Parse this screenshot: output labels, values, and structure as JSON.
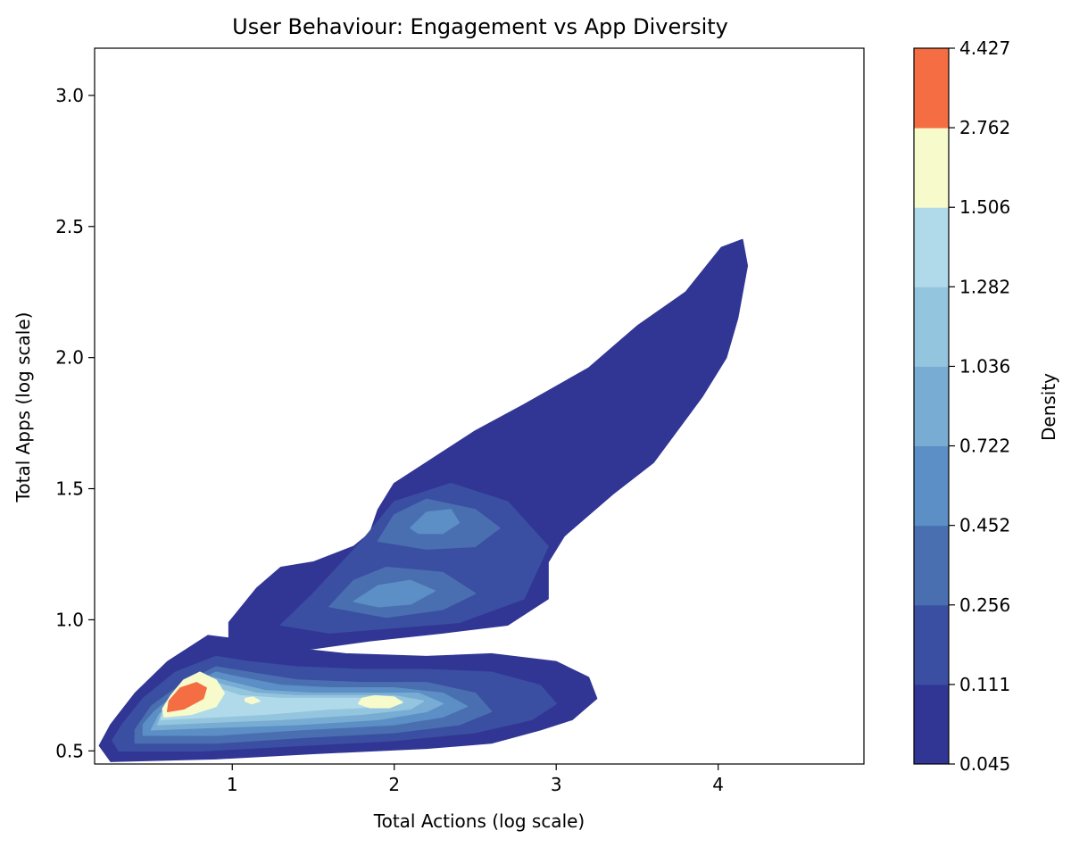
{
  "chart_data": {
    "type": "contour",
    "title": "User Behaviour: Engagement vs App Diversity",
    "xlabel": "Total Actions (log scale)",
    "ylabel": "Total Apps (log scale)",
    "xlim": [
      0.15,
      4.9
    ],
    "ylim": [
      0.45,
      3.18
    ],
    "xticks": [
      1,
      2,
      3,
      4
    ],
    "yticks": [
      0.5,
      1.0,
      1.5,
      2.0,
      2.5,
      3.0
    ],
    "grid": false,
    "colorbar": {
      "label": "Density",
      "levels": [
        0.045,
        0.111,
        0.256,
        0.452,
        0.722,
        1.036,
        1.282,
        1.506,
        2.762,
        4.427
      ],
      "colors": [
        "#313695",
        "#3a4fa2",
        "#4a6fb0",
        "#5b8fc5",
        "#78acd2",
        "#94c5df",
        "#b0daea",
        "#f7fbcc",
        "#f46d43"
      ]
    },
    "contours": [
      {
        "level_index": 0,
        "polygons": [
          [
            [
              0.25,
              0.46
            ],
            [
              0.9,
              0.47
            ],
            [
              1.5,
              0.49
            ],
            [
              2.2,
              0.51
            ],
            [
              2.6,
              0.53
            ],
            [
              2.9,
              0.58
            ],
            [
              3.1,
              0.62
            ],
            [
              3.25,
              0.7
            ],
            [
              3.2,
              0.78
            ],
            [
              3.0,
              0.84
            ],
            [
              2.6,
              0.87
            ],
            [
              2.2,
              0.86
            ],
            [
              1.7,
              0.87
            ],
            [
              1.4,
              0.89
            ],
            [
              1.1,
              0.92
            ],
            [
              0.85,
              0.94
            ],
            [
              0.6,
              0.84
            ],
            [
              0.4,
              0.72
            ],
            [
              0.25,
              0.6
            ],
            [
              0.18,
              0.52
            ]
          ],
          [
            [
              0.98,
              0.99
            ],
            [
              1.15,
              1.12
            ],
            [
              1.3,
              1.2
            ],
            [
              1.5,
              1.22
            ],
            [
              1.75,
              1.28
            ],
            [
              1.85,
              1.33
            ],
            [
              1.9,
              1.42
            ],
            [
              2.0,
              1.52
            ],
            [
              2.2,
              1.6
            ],
            [
              2.5,
              1.72
            ],
            [
              2.8,
              1.82
            ],
            [
              3.2,
              1.96
            ],
            [
              3.5,
              2.12
            ],
            [
              3.8,
              2.25
            ],
            [
              4.02,
              2.42
            ],
            [
              4.15,
              2.45
            ],
            [
              4.18,
              2.35
            ],
            [
              4.15,
              2.25
            ],
            [
              4.12,
              2.15
            ],
            [
              4.05,
              2.0
            ],
            [
              3.9,
              1.85
            ],
            [
              3.6,
              1.6
            ],
            [
              3.35,
              1.48
            ],
            [
              3.05,
              1.32
            ],
            [
              2.95,
              1.22
            ],
            [
              2.95,
              1.08
            ],
            [
              2.7,
              0.98
            ],
            [
              2.3,
              0.95
            ],
            [
              1.85,
              0.92
            ],
            [
              1.5,
              0.89
            ],
            [
              1.1,
              0.88
            ],
            [
              0.98,
              0.92
            ]
          ]
        ]
      },
      {
        "level_index": 1,
        "polygons": [
          [
            [
              0.3,
              0.5
            ],
            [
              0.8,
              0.5
            ],
            [
              1.4,
              0.52
            ],
            [
              2.0,
              0.54
            ],
            [
              2.5,
              0.57
            ],
            [
              2.85,
              0.62
            ],
            [
              3.0,
              0.68
            ],
            [
              2.9,
              0.75
            ],
            [
              2.6,
              0.8
            ],
            [
              2.2,
              0.81
            ],
            [
              1.8,
              0.81
            ],
            [
              1.4,
              0.82
            ],
            [
              1.1,
              0.84
            ],
            [
              0.9,
              0.86
            ],
            [
              0.65,
              0.8
            ],
            [
              0.45,
              0.7
            ],
            [
              0.32,
              0.6
            ],
            [
              0.26,
              0.54
            ]
          ],
          [
            [
              1.3,
              0.98
            ],
            [
              1.5,
              1.1
            ],
            [
              1.65,
              1.2
            ],
            [
              1.8,
              1.3
            ],
            [
              2.0,
              1.45
            ],
            [
              2.35,
              1.52
            ],
            [
              2.7,
              1.45
            ],
            [
              2.95,
              1.28
            ],
            [
              2.8,
              1.08
            ],
            [
              2.4,
              0.99
            ],
            [
              2.0,
              0.97
            ],
            [
              1.6,
              0.95
            ]
          ]
        ]
      },
      {
        "level_index": 2,
        "polygons": [
          [
            [
              0.4,
              0.53
            ],
            [
              0.9,
              0.53
            ],
            [
              1.4,
              0.55
            ],
            [
              2.0,
              0.57
            ],
            [
              2.4,
              0.6
            ],
            [
              2.6,
              0.65
            ],
            [
              2.5,
              0.72
            ],
            [
              2.2,
              0.76
            ],
            [
              1.8,
              0.76
            ],
            [
              1.4,
              0.77
            ],
            [
              1.1,
              0.8
            ],
            [
              0.9,
              0.82
            ],
            [
              0.7,
              0.76
            ],
            [
              0.5,
              0.67
            ],
            [
              0.4,
              0.58
            ]
          ],
          [
            [
              1.6,
              1.05
            ],
            [
              1.75,
              1.15
            ],
            [
              1.95,
              1.2
            ],
            [
              2.3,
              1.18
            ],
            [
              2.5,
              1.1
            ],
            [
              2.3,
              1.04
            ],
            [
              1.95,
              1.01
            ]
          ],
          [
            [
              1.9,
              1.3
            ],
            [
              2.0,
              1.4
            ],
            [
              2.2,
              1.46
            ],
            [
              2.5,
              1.42
            ],
            [
              2.65,
              1.35
            ],
            [
              2.5,
              1.28
            ],
            [
              2.2,
              1.27
            ]
          ]
        ]
      },
      {
        "level_index": 3,
        "polygons": [
          [
            [
              0.45,
              0.56
            ],
            [
              0.9,
              0.56
            ],
            [
              1.4,
              0.58
            ],
            [
              2.0,
              0.6
            ],
            [
              2.3,
              0.63
            ],
            [
              2.45,
              0.67
            ],
            [
              2.3,
              0.72
            ],
            [
              2.0,
              0.74
            ],
            [
              1.6,
              0.74
            ],
            [
              1.3,
              0.75
            ],
            [
              1.05,
              0.78
            ],
            [
              0.9,
              0.8
            ],
            [
              0.7,
              0.74
            ],
            [
              0.52,
              0.65
            ],
            [
              0.45,
              0.6
            ]
          ],
          [
            [
              1.75,
              1.07
            ],
            [
              1.9,
              1.13
            ],
            [
              2.1,
              1.15
            ],
            [
              2.25,
              1.11
            ],
            [
              2.1,
              1.06
            ],
            [
              1.9,
              1.05
            ]
          ],
          [
            [
              2.1,
              1.35
            ],
            [
              2.2,
              1.41
            ],
            [
              2.35,
              1.42
            ],
            [
              2.4,
              1.37
            ],
            [
              2.3,
              1.33
            ],
            [
              2.15,
              1.33
            ]
          ]
        ]
      },
      {
        "level_index": 4,
        "polygons": [
          [
            [
              0.5,
              0.58
            ],
            [
              0.9,
              0.59
            ],
            [
              1.4,
              0.6
            ],
            [
              1.9,
              0.62
            ],
            [
              2.2,
              0.65
            ],
            [
              2.3,
              0.68
            ],
            [
              2.15,
              0.72
            ],
            [
              1.9,
              0.72
            ],
            [
              1.5,
              0.72
            ],
            [
              1.2,
              0.73
            ],
            [
              1.0,
              0.76
            ],
            [
              0.88,
              0.78
            ],
            [
              0.7,
              0.72
            ],
            [
              0.55,
              0.64
            ]
          ]
        ]
      },
      {
        "level_index": 5,
        "polygons": [
          [
            [
              0.54,
              0.6
            ],
            [
              0.9,
              0.61
            ],
            [
              1.3,
              0.62
            ],
            [
              1.8,
              0.64
            ],
            [
              2.1,
              0.66
            ],
            [
              2.18,
              0.69
            ],
            [
              2.0,
              0.71
            ],
            [
              1.7,
              0.71
            ],
            [
              1.4,
              0.71
            ],
            [
              1.15,
              0.72
            ],
            [
              0.95,
              0.75
            ],
            [
              0.85,
              0.77
            ],
            [
              0.7,
              0.71
            ],
            [
              0.57,
              0.65
            ]
          ]
        ]
      },
      {
        "level_index": 6,
        "polygons": [
          [
            [
              0.56,
              0.62
            ],
            [
              0.9,
              0.63
            ],
            [
              1.2,
              0.64
            ],
            [
              1.6,
              0.66
            ],
            [
              1.95,
              0.67
            ],
            [
              2.05,
              0.69
            ],
            [
              1.9,
              0.7
            ],
            [
              1.6,
              0.7
            ],
            [
              1.3,
              0.7
            ],
            [
              1.05,
              0.71
            ],
            [
              0.9,
              0.74
            ],
            [
              0.8,
              0.76
            ],
            [
              0.68,
              0.71
            ],
            [
              0.58,
              0.66
            ]
          ]
        ]
      },
      {
        "level_index": 7,
        "polygons": [
          [
            [
              0.58,
              0.63
            ],
            [
              0.75,
              0.64
            ],
            [
              0.9,
              0.67
            ],
            [
              0.95,
              0.72
            ],
            [
              0.9,
              0.77
            ],
            [
              0.8,
              0.8
            ],
            [
              0.7,
              0.77
            ],
            [
              0.62,
              0.71
            ],
            [
              0.57,
              0.66
            ]
          ],
          [
            [
              1.78,
              0.68
            ],
            [
              1.85,
              0.665
            ],
            [
              1.97,
              0.665
            ],
            [
              2.05,
              0.685
            ],
            [
              2.0,
              0.705
            ],
            [
              1.88,
              0.71
            ],
            [
              1.8,
              0.7
            ]
          ],
          [
            [
              1.08,
              0.69
            ],
            [
              1.12,
              0.68
            ],
            [
              1.17,
              0.69
            ],
            [
              1.13,
              0.705
            ],
            [
              1.08,
              0.7
            ]
          ]
        ]
      },
      {
        "level_index": 8,
        "polygons": [
          [
            [
              0.6,
              0.65
            ],
            [
              0.7,
              0.66
            ],
            [
              0.82,
              0.7
            ],
            [
              0.84,
              0.74
            ],
            [
              0.78,
              0.76
            ],
            [
              0.68,
              0.74
            ],
            [
              0.61,
              0.69
            ]
          ]
        ]
      }
    ]
  }
}
